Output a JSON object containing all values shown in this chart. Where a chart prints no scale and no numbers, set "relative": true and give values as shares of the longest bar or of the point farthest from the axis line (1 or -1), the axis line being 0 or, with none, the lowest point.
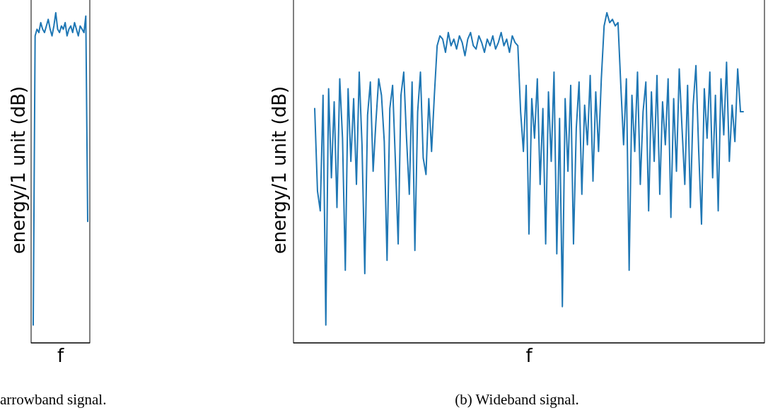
{
  "chart_data": [
    {
      "type": "line",
      "relative": true,
      "xlabel": "f",
      "ylabel": "energy/1 unit (dB)",
      "annotations": [
        "arrowband signal."
      ],
      "categories": [
        null,
        null,
        null,
        null,
        null,
        null,
        null,
        null,
        null,
        null,
        null,
        null,
        null,
        null,
        null,
        null,
        null,
        null,
        null,
        null,
        null,
        null,
        null,
        null,
        null,
        null,
        null,
        null,
        null,
        null
      ],
      "series": [
        {
          "color": "#1f77b4",
          "values": [
            0.054,
            0.93,
            0.95,
            0.94,
            0.97,
            0.95,
            0.94,
            0.96,
            0.98,
            0.95,
            0.93,
            0.96,
            1.0,
            0.95,
            0.94,
            0.96,
            0.95,
            0.97,
            0.93,
            0.95,
            0.96,
            0.94,
            0.97,
            0.95,
            0.93,
            0.96,
            0.95,
            0.94,
            0.99,
            0.368
          ]
        }
      ]
    },
    {
      "type": "line",
      "relative": true,
      "xlabel": "f",
      "ylabel": "energy/1 unit (dB)",
      "annotations": [
        "(b) Wideband signal."
      ],
      "categories": [
        null,
        null,
        null,
        null,
        null,
        null,
        null,
        null,
        null,
        null,
        null,
        null,
        null,
        null,
        null,
        null,
        null,
        null,
        null,
        null,
        null,
        null,
        null,
        null,
        null,
        null,
        null,
        null,
        null,
        null,
        null,
        null,
        null,
        null,
        null,
        null,
        null,
        null,
        null,
        null,
        null,
        null,
        null,
        null,
        null,
        null,
        null,
        null,
        null,
        null,
        null,
        null,
        null,
        null,
        null,
        null,
        null,
        null,
        null,
        null,
        null,
        null,
        null,
        null,
        null,
        null,
        null,
        null,
        null,
        null,
        null,
        null,
        null,
        null,
        null,
        null,
        null,
        null,
        null,
        null,
        null,
        null,
        null,
        null,
        null,
        null,
        null,
        null,
        null,
        null,
        null,
        null,
        null,
        null,
        null,
        null,
        null,
        null,
        null,
        null,
        null,
        null,
        null,
        null,
        null,
        null,
        null,
        null,
        null,
        null,
        null,
        null,
        null,
        null,
        null,
        null,
        null,
        null,
        null,
        null,
        null,
        null,
        null,
        null,
        null,
        null,
        null,
        null,
        null,
        null,
        null,
        null,
        null,
        null,
        null,
        null,
        null,
        null,
        null,
        null,
        null,
        null,
        null,
        null,
        null,
        null,
        null,
        null,
        null,
        null,
        null,
        null,
        null,
        null,
        null
      ],
      "series": [
        {
          "color": "#1f77b4",
          "values": [
            0.71,
            0.46,
            0.4,
            0.75,
            0.054,
            0.77,
            0.5,
            0.73,
            0.41,
            0.8,
            0.62,
            0.22,
            0.77,
            0.55,
            0.74,
            0.48,
            0.82,
            0.6,
            0.21,
            0.69,
            0.79,
            0.52,
            0.67,
            0.8,
            0.75,
            0.61,
            0.25,
            0.71,
            0.78,
            0.55,
            0.3,
            0.75,
            0.82,
            0.62,
            0.45,
            0.79,
            0.28,
            0.7,
            0.82,
            0.56,
            0.51,
            0.74,
            0.58,
            0.75,
            0.9,
            0.93,
            0.92,
            0.88,
            0.94,
            0.9,
            0.92,
            0.89,
            0.93,
            0.91,
            0.87,
            0.92,
            0.94,
            0.9,
            0.89,
            0.93,
            0.91,
            0.88,
            0.92,
            0.9,
            0.93,
            0.89,
            0.91,
            0.94,
            0.9,
            0.92,
            0.88,
            0.93,
            0.91,
            0.9,
            0.7,
            0.58,
            0.78,
            0.33,
            0.74,
            0.62,
            0.8,
            0.48,
            0.71,
            0.3,
            0.76,
            0.55,
            0.82,
            0.27,
            0.68,
            0.11,
            0.74,
            0.52,
            0.78,
            0.3,
            0.65,
            0.79,
            0.45,
            0.72,
            0.6,
            0.81,
            0.49,
            0.76,
            0.58,
            0.8,
            0.96,
            1.0,
            0.97,
            0.98,
            0.96,
            0.97,
            0.78,
            0.6,
            0.8,
            0.22,
            0.75,
            0.58,
            0.82,
            0.48,
            0.7,
            0.79,
            0.4,
            0.76,
            0.55,
            0.81,
            0.45,
            0.73,
            0.6,
            0.8,
            0.38,
            0.74,
            0.52,
            0.83,
            0.65,
            0.48,
            0.78,
            0.41,
            0.72,
            0.84,
            0.58,
            0.36,
            0.77,
            0.62,
            0.82,
            0.5,
            0.75,
            0.4,
            0.8,
            0.63,
            0.85,
            0.55,
            0.72,
            0.61,
            0.83,
            0.7,
            0.7
          ]
        }
      ]
    }
  ]
}
